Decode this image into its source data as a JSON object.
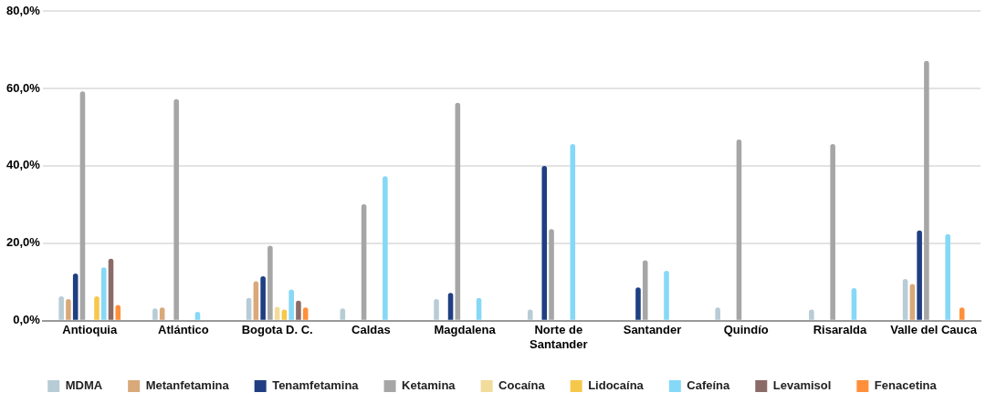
{
  "chart_data": {
    "type": "bar",
    "categories": [
      "Antioquia",
      "Atlántico",
      "Bogota D. C.",
      "Caldas",
      "Magdalena",
      "Norte de Santander",
      "Santander",
      "Quindío",
      "Risaralda",
      "Valle del Cauca"
    ],
    "series": [
      {
        "name": "MDMA",
        "color": "#b8ccd6",
        "values": [
          6.3,
          3.2,
          5.9,
          3.2,
          5.6,
          2.9,
          null,
          3.4,
          2.9,
          10.8
        ]
      },
      {
        "name": "Metanfetamina",
        "color": "#d9a97a",
        "values": [
          5.6,
          3.4,
          10.2,
          null,
          null,
          null,
          null,
          null,
          null,
          9.5
        ]
      },
      {
        "name": "Tenamfetamina",
        "color": "#1f3f82",
        "values": [
          12.2,
          null,
          11.5,
          null,
          7.2,
          40.0,
          8.6,
          null,
          null,
          23.3
        ]
      },
      {
        "name": "Ketamina",
        "color": "#a6a6a6",
        "values": [
          59.2,
          57.2,
          19.4,
          30.1,
          56.3,
          23.7,
          15.6,
          46.8,
          45.6,
          67.1
        ]
      },
      {
        "name": "Cocaína",
        "color": "#f2dc9b",
        "values": [
          null,
          null,
          3.6,
          null,
          null,
          null,
          null,
          null,
          null,
          null
        ]
      },
      {
        "name": "Lidocaína",
        "color": "#f5c84c",
        "values": [
          6.3,
          null,
          2.9,
          null,
          null,
          null,
          null,
          null,
          null,
          null
        ]
      },
      {
        "name": "Cafeína",
        "color": "#86d8f7",
        "values": [
          13.8,
          2.3,
          8.1,
          37.3,
          5.9,
          45.6,
          12.9,
          null,
          8.4,
          22.4
        ]
      },
      {
        "name": "Levamisol",
        "color": "#8b6b67",
        "values": [
          16.0,
          null,
          5.2,
          null,
          null,
          null,
          null,
          null,
          null,
          null
        ]
      },
      {
        "name": "Fenacetina",
        "color": "#ff8f3a",
        "values": [
          4.1,
          null,
          3.4,
          null,
          null,
          null,
          null,
          null,
          null,
          3.4
        ]
      }
    ],
    "ylim": [
      0,
      80
    ],
    "yticks": [
      {
        "value": 0,
        "label": "0,0%"
      },
      {
        "value": 20,
        "label": "20,0%"
      },
      {
        "value": 40,
        "label": "40,0%"
      },
      {
        "value": 60,
        "label": "60,0%"
      },
      {
        "value": 80,
        "label": "80,0%"
      }
    ],
    "grid": "y",
    "legend": "bottom"
  }
}
